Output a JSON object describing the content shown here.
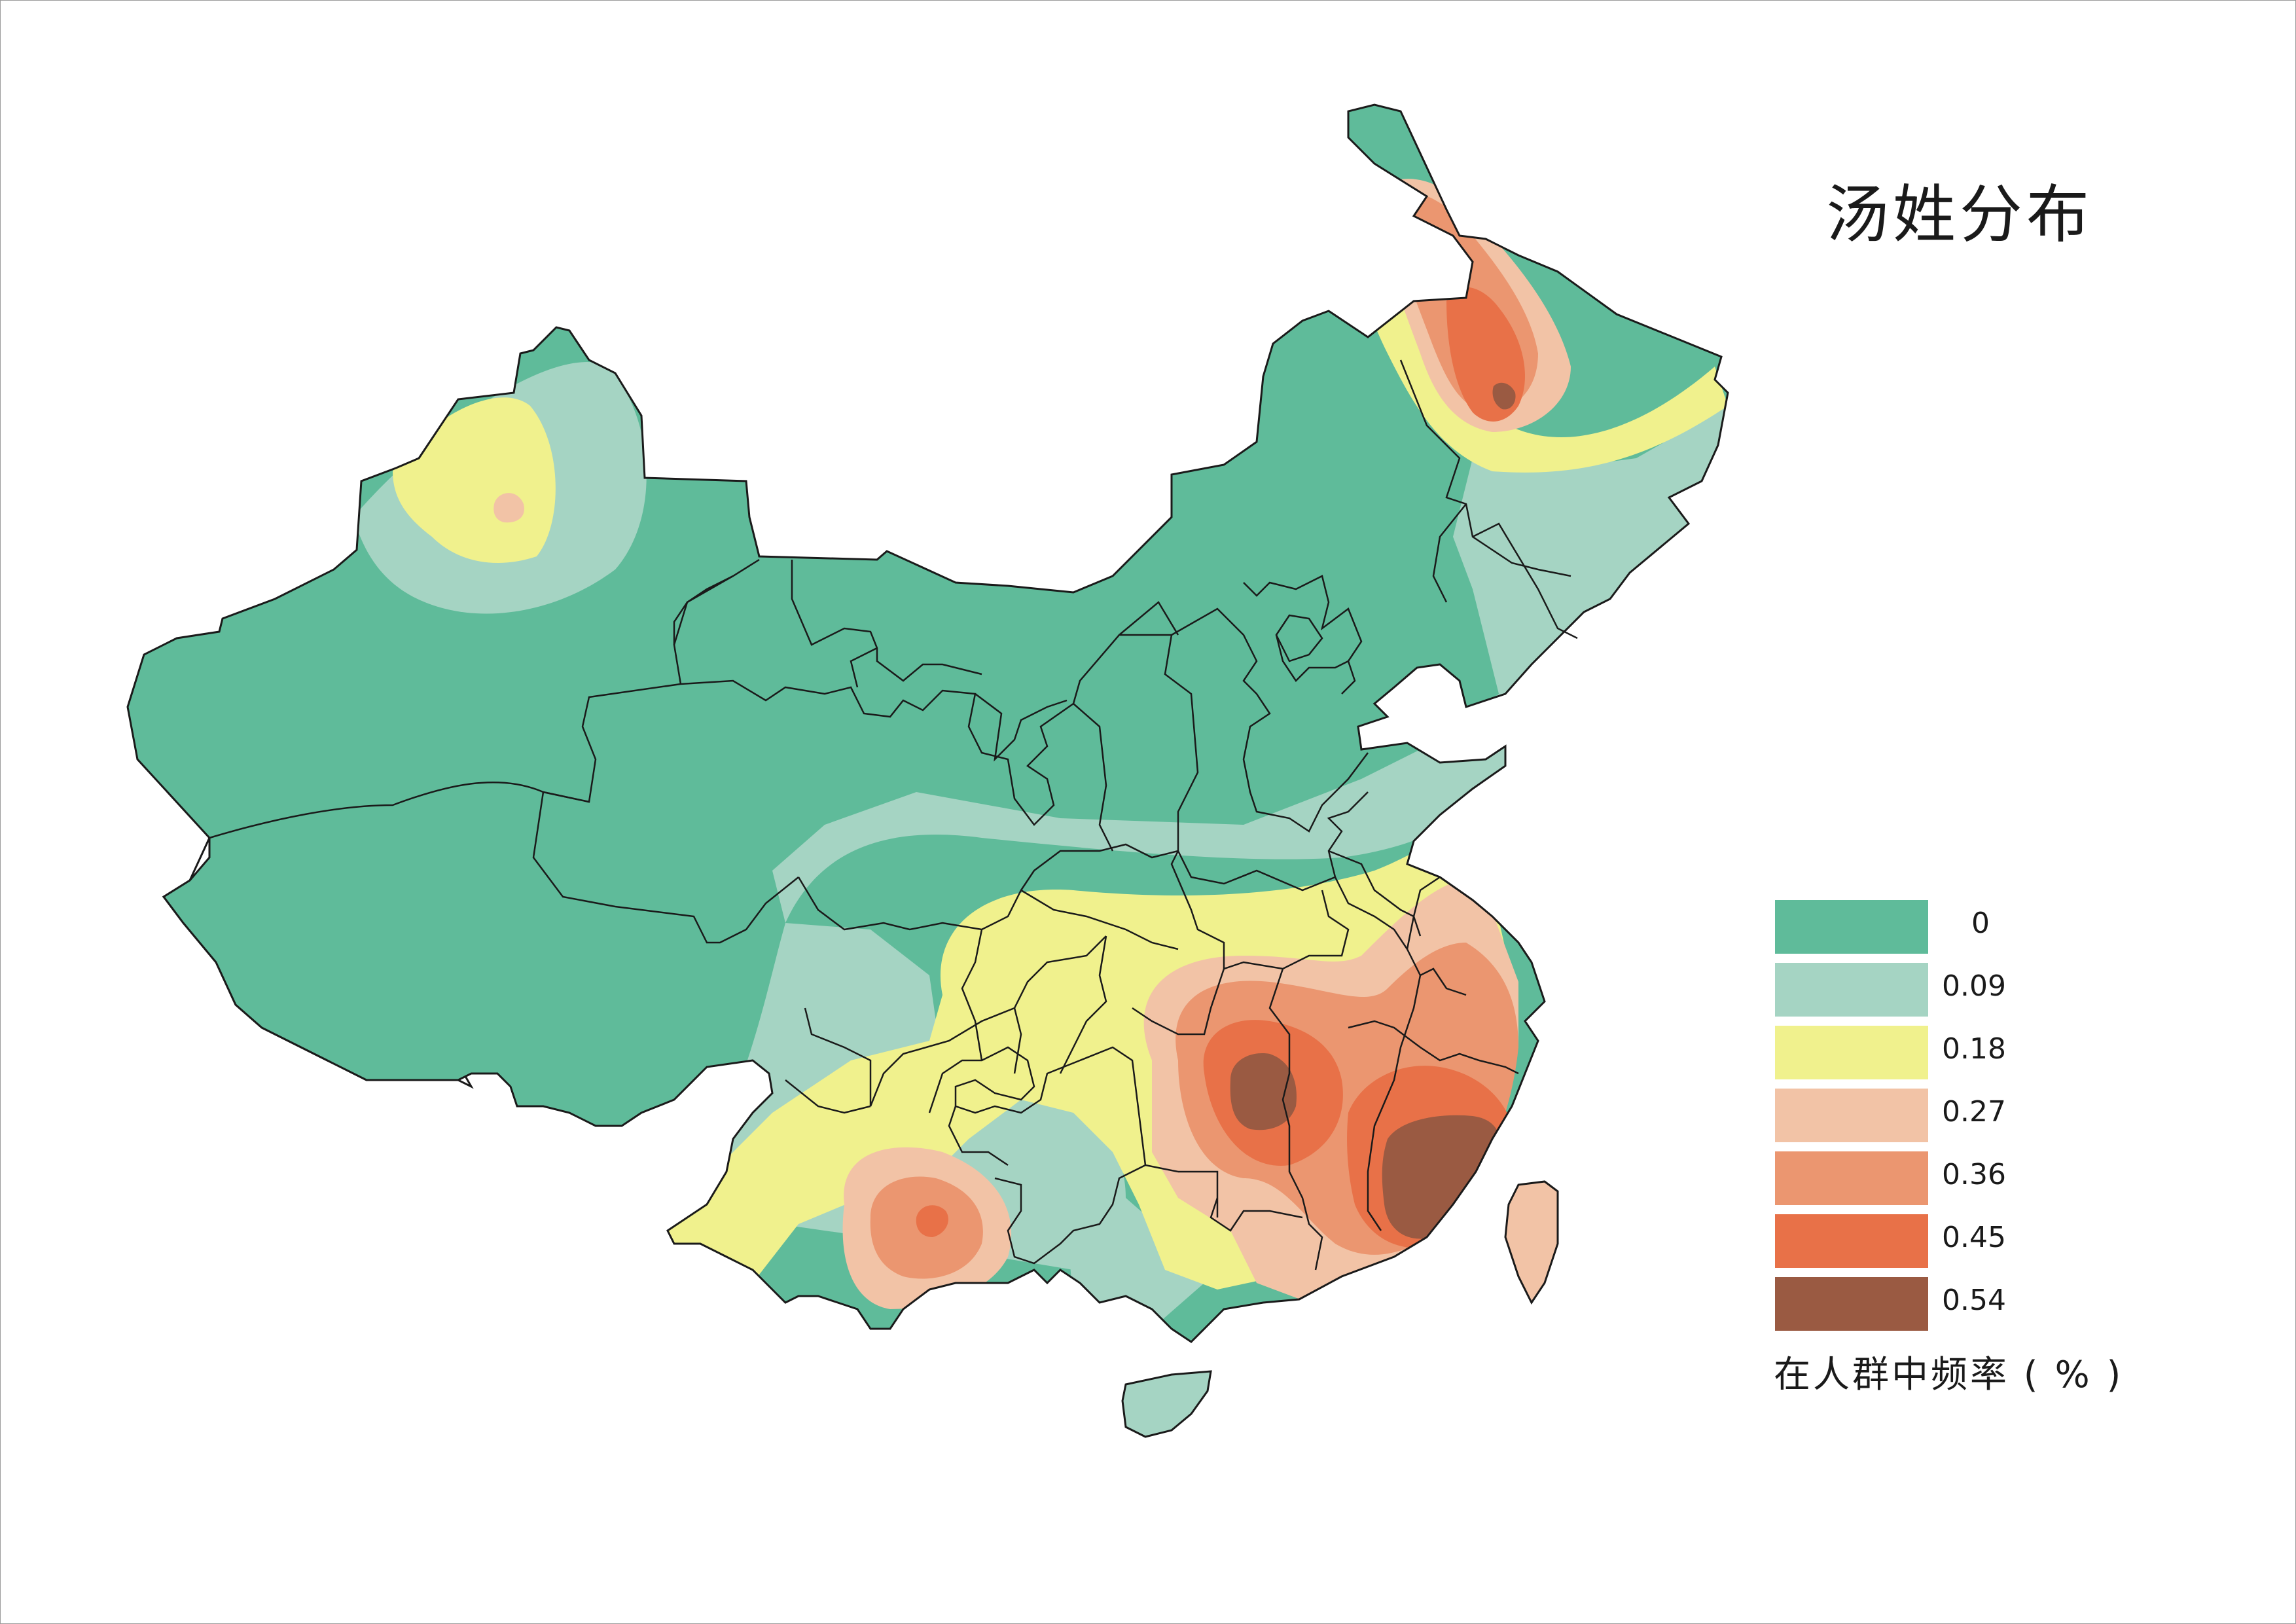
{
  "map": {
    "title": "汤姓分布",
    "legend_caption": "在人群中频率 ( % )",
    "legend": [
      {
        "label": "0",
        "color": "#5fbb9a"
      },
      {
        "label": "0.09",
        "color": "#a5d4c3"
      },
      {
        "label": "0.18",
        "color": "#f0f18d"
      },
      {
        "label": "0.27",
        "color": "#f2c3a6"
      },
      {
        "label": "0.36",
        "color": "#eb9670"
      },
      {
        "label": "0.45",
        "color": "#e87148"
      },
      {
        "label": "0.54",
        "color": "#9a5a42"
      }
    ]
  }
}
